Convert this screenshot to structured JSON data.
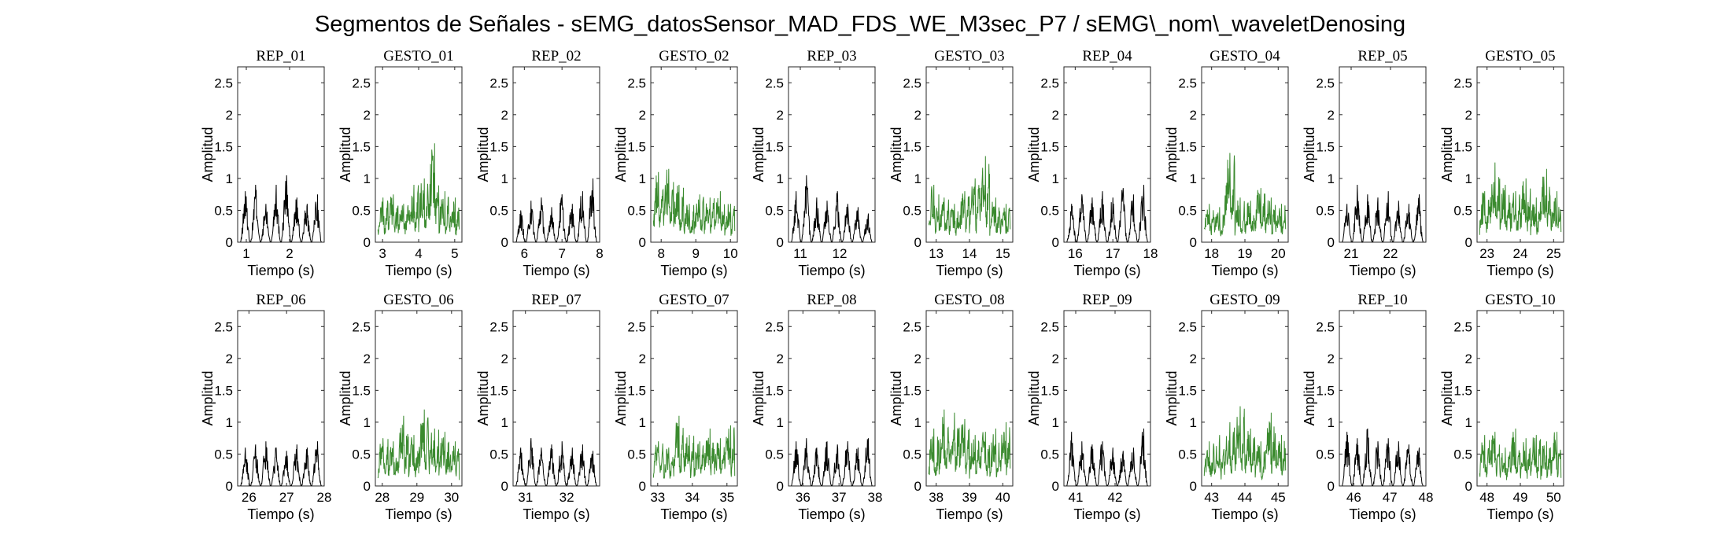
{
  "figure": {
    "suptitle": "Segmentos de Señales - sEMG_datosSensor_MAD_FDS_WE_M3sec_P7 / sEMG\\_nom\\_waveletDenosing"
  },
  "colors": {
    "rep": "#000000",
    "gesto": "#3a8a2e",
    "axis": "#262626"
  },
  "chart_data": [
    {
      "type": "line",
      "title": "REP_01",
      "xlabel": "Tiempo (s)",
      "ylabel": "Amplitud",
      "xlim": [
        0.8,
        2.8
      ],
      "ylim": [
        0,
        2.75
      ],
      "xticks": [
        1,
        2
      ],
      "yticks": [
        0,
        0.5,
        1,
        1.5,
        2,
        2.5
      ],
      "color": "rep",
      "peaks": [
        0.8,
        0.9,
        0.6,
        0.9,
        1.05,
        0.7,
        0.6,
        0.75
      ]
    },
    {
      "type": "line",
      "title": "GESTO_01",
      "xlabel": "Tiempo (s)",
      "ylabel": "Amplitud",
      "xlim": [
        2.8,
        5.2
      ],
      "ylim": [
        0,
        2.75
      ],
      "xticks": [
        3,
        4,
        5
      ],
      "yticks": [
        0,
        0.5,
        1,
        1.5,
        2,
        2.5
      ],
      "color": "gesto",
      "peaks": [
        0.7,
        0.75,
        0.6,
        0.9,
        1.0,
        1.55,
        0.8,
        0.7
      ]
    },
    {
      "type": "line",
      "title": "REP_02",
      "xlabel": "Tiempo (s)",
      "ylabel": "Amplitud",
      "xlim": [
        5.7,
        8.0
      ],
      "ylim": [
        0,
        2.75
      ],
      "xticks": [
        6,
        7,
        8
      ],
      "yticks": [
        0,
        0.5,
        1,
        1.5,
        2,
        2.5
      ],
      "color": "rep",
      "peaks": [
        0.5,
        0.65,
        0.7,
        0.55,
        0.75,
        0.6,
        0.8,
        1.0
      ]
    },
    {
      "type": "line",
      "title": "GESTO_02",
      "xlabel": "Tiempo (s)",
      "ylabel": "Amplitud",
      "xlim": [
        7.7,
        10.2
      ],
      "ylim": [
        0,
        2.75
      ],
      "xticks": [
        8,
        9,
        10
      ],
      "yticks": [
        0,
        0.5,
        1,
        1.5,
        2,
        2.5
      ],
      "color": "gesto",
      "peaks": [
        1.1,
        1.15,
        0.9,
        0.6,
        0.75,
        0.7,
        0.8,
        0.6
      ]
    },
    {
      "type": "line",
      "title": "REP_03",
      "xlabel": "Tiempo (s)",
      "ylabel": "Amplitud",
      "xlim": [
        10.7,
        12.9
      ],
      "ylim": [
        0,
        2.75
      ],
      "xticks": [
        11,
        12
      ],
      "yticks": [
        0,
        0.5,
        1,
        1.5,
        2,
        2.5
      ],
      "color": "rep",
      "peaks": [
        0.8,
        1.05,
        0.7,
        0.65,
        0.8,
        0.6,
        0.55,
        0.45
      ]
    },
    {
      "type": "line",
      "title": "GESTO_03",
      "xlabel": "Tiempo (s)",
      "ylabel": "Amplitud",
      "xlim": [
        12.7,
        15.3
      ],
      "ylim": [
        0,
        2.75
      ],
      "xticks": [
        13,
        14,
        15
      ],
      "yticks": [
        0,
        0.5,
        1,
        1.5,
        2,
        2.5
      ],
      "color": "gesto",
      "peaks": [
        0.9,
        0.7,
        0.6,
        0.8,
        1.0,
        1.35,
        0.7,
        0.6
      ]
    },
    {
      "type": "line",
      "title": "REP_04",
      "xlabel": "Tiempo (s)",
      "ylabel": "Amplitud",
      "xlim": [
        15.7,
        18.0
      ],
      "ylim": [
        0,
        2.75
      ],
      "xticks": [
        16,
        17,
        18
      ],
      "yticks": [
        0,
        0.5,
        1,
        1.5,
        2,
        2.5
      ],
      "color": "rep",
      "peaks": [
        0.6,
        0.75,
        0.7,
        0.8,
        0.7,
        0.85,
        0.75,
        0.9
      ]
    },
    {
      "type": "line",
      "title": "GESTO_04",
      "xlabel": "Tiempo (s)",
      "ylabel": "Amplitud",
      "xlim": [
        17.7,
        20.3
      ],
      "ylim": [
        0,
        2.75
      ],
      "xticks": [
        18,
        19,
        20
      ],
      "yticks": [
        0,
        0.5,
        1,
        1.5,
        2,
        2.5
      ],
      "color": "gesto",
      "peaks": [
        0.6,
        0.55,
        1.4,
        0.7,
        0.65,
        0.85,
        0.7,
        0.6
      ]
    },
    {
      "type": "line",
      "title": "REP_05",
      "xlabel": "Tiempo (s)",
      "ylabel": "Amplitud",
      "xlim": [
        20.7,
        22.9
      ],
      "ylim": [
        0,
        2.75
      ],
      "xticks": [
        21,
        22
      ],
      "yticks": [
        0,
        0.5,
        1,
        1.5,
        2,
        2.5
      ],
      "color": "rep",
      "peaks": [
        0.6,
        0.9,
        0.75,
        0.7,
        0.8,
        0.65,
        0.6,
        0.75
      ]
    },
    {
      "type": "line",
      "title": "GESTO_05",
      "xlabel": "Tiempo (s)",
      "ylabel": "Amplitud",
      "xlim": [
        22.7,
        25.3
      ],
      "ylim": [
        0,
        2.75
      ],
      "xticks": [
        23,
        24,
        25
      ],
      "yticks": [
        0,
        0.5,
        1,
        1.5,
        2,
        2.5
      ],
      "color": "gesto",
      "peaks": [
        0.8,
        1.25,
        0.9,
        0.8,
        1.0,
        0.7,
        1.15,
        0.8
      ]
    },
    {
      "type": "line",
      "title": "REP_06",
      "xlabel": "Tiempo (s)",
      "ylabel": "Amplitud",
      "xlim": [
        25.7,
        28.0
      ],
      "ylim": [
        0,
        2.75
      ],
      "xticks": [
        26,
        27,
        28
      ],
      "yticks": [
        0,
        0.5,
        1,
        1.5,
        2,
        2.5
      ],
      "color": "rep",
      "peaks": [
        0.6,
        0.65,
        0.7,
        0.6,
        0.55,
        0.65,
        0.6,
        0.7
      ]
    },
    {
      "type": "line",
      "title": "GESTO_06",
      "xlabel": "Tiempo (s)",
      "ylabel": "Amplitud",
      "xlim": [
        27.8,
        30.3
      ],
      "ylim": [
        0,
        2.75
      ],
      "xticks": [
        28,
        29,
        30
      ],
      "yticks": [
        0,
        0.5,
        1,
        1.5,
        2,
        2.5
      ],
      "color": "gesto",
      "peaks": [
        0.75,
        0.7,
        1.1,
        0.8,
        1.2,
        0.9,
        0.85,
        0.7
      ]
    },
    {
      "type": "line",
      "title": "REP_07",
      "xlabel": "Tiempo (s)",
      "ylabel": "Amplitud",
      "xlim": [
        30.7,
        32.8
      ],
      "ylim": [
        0,
        2.75
      ],
      "xticks": [
        31,
        32
      ],
      "yticks": [
        0,
        0.5,
        1,
        1.5,
        2,
        2.5
      ],
      "color": "rep",
      "peaks": [
        0.6,
        0.75,
        0.6,
        0.65,
        0.7,
        0.6,
        0.65,
        0.55
      ]
    },
    {
      "type": "line",
      "title": "GESTO_07",
      "xlabel": "Tiempo (s)",
      "ylabel": "Amplitud",
      "xlim": [
        32.8,
        35.3
      ],
      "ylim": [
        0,
        2.75
      ],
      "xticks": [
        33,
        34,
        35
      ],
      "yticks": [
        0,
        0.5,
        1,
        1.5,
        2,
        2.5
      ],
      "color": "gesto",
      "peaks": [
        0.7,
        0.6,
        1.1,
        0.8,
        0.7,
        0.9,
        0.75,
        0.95
      ]
    },
    {
      "type": "line",
      "title": "REP_08",
      "xlabel": "Tiempo (s)",
      "ylabel": "Amplitud",
      "xlim": [
        35.6,
        38.0
      ],
      "ylim": [
        0,
        2.75
      ],
      "xticks": [
        36,
        37,
        38
      ],
      "yticks": [
        0,
        0.5,
        1,
        1.5,
        2,
        2.5
      ],
      "color": "rep",
      "peaks": [
        0.7,
        0.75,
        0.6,
        0.7,
        0.65,
        0.7,
        0.6,
        0.75
      ]
    },
    {
      "type": "line",
      "title": "GESTO_08",
      "xlabel": "Tiempo (s)",
      "ylabel": "Amplitud",
      "xlim": [
        37.7,
        40.3
      ],
      "ylim": [
        0,
        2.75
      ],
      "xticks": [
        38,
        39,
        40
      ],
      "yticks": [
        0,
        0.5,
        1,
        1.5,
        2,
        2.5
      ],
      "color": "gesto",
      "peaks": [
        0.9,
        1.2,
        1.15,
        1.05,
        0.8,
        0.85,
        0.9,
        1.0
      ]
    },
    {
      "type": "line",
      "title": "REP_09",
      "xlabel": "Tiempo (s)",
      "ylabel": "Amplitud",
      "xlim": [
        40.7,
        42.9
      ],
      "ylim": [
        0,
        2.75
      ],
      "xticks": [
        41,
        42
      ],
      "yticks": [
        0,
        0.5,
        1,
        1.5,
        2,
        2.5
      ],
      "color": "rep",
      "peaks": [
        0.85,
        0.7,
        0.65,
        0.7,
        0.6,
        0.55,
        0.6,
        0.9
      ]
    },
    {
      "type": "line",
      "title": "GESTO_09",
      "xlabel": "Tiempo (s)",
      "ylabel": "Amplitud",
      "xlim": [
        42.7,
        45.3
      ],
      "ylim": [
        0,
        2.75
      ],
      "xticks": [
        43,
        44,
        45
      ],
      "yticks": [
        0,
        0.5,
        1,
        1.5,
        2,
        2.5
      ],
      "color": "gesto",
      "peaks": [
        0.7,
        0.8,
        1.0,
        1.25,
        0.9,
        0.7,
        1.15,
        0.8
      ]
    },
    {
      "type": "line",
      "title": "REP_10",
      "xlabel": "Tiempo (s)",
      "ylabel": "Amplitud",
      "xlim": [
        45.6,
        48.0
      ],
      "ylim": [
        0,
        2.75
      ],
      "xticks": [
        46,
        47,
        48
      ],
      "yticks": [
        0,
        0.5,
        1,
        1.5,
        2,
        2.5
      ],
      "color": "rep",
      "peaks": [
        0.85,
        0.75,
        0.9,
        0.7,
        0.75,
        0.7,
        0.65,
        0.6
      ]
    },
    {
      "type": "line",
      "title": "GESTO_10",
      "xlabel": "Tiempo (s)",
      "ylabel": "Amplitud",
      "xlim": [
        47.7,
        50.3
      ],
      "ylim": [
        0,
        2.75
      ],
      "xticks": [
        48,
        49,
        50
      ],
      "yticks": [
        0,
        0.5,
        1,
        1.5,
        2,
        2.5
      ],
      "color": "gesto",
      "peaks": [
        0.8,
        0.85,
        0.6,
        0.9,
        0.75,
        0.8,
        0.7,
        0.85
      ]
    }
  ]
}
